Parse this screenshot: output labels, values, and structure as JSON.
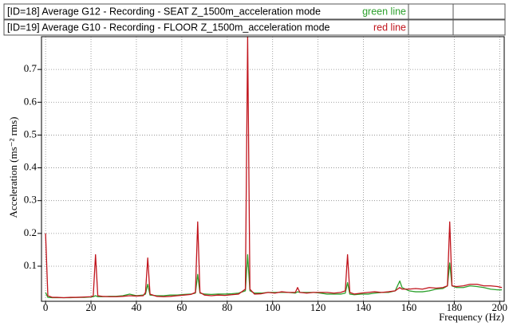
{
  "chart_data": {
    "type": "line",
    "y_label": "Acceleration (ms⁻² rms)",
    "x_label": "Frequency (Hz)",
    "xlim": [
      -1.8,
      202
    ],
    "ylim": [
      -0.007,
      0.8
    ],
    "xticks": [
      0,
      20,
      40,
      60,
      80,
      100,
      120,
      140,
      160,
      180,
      200
    ],
    "yticks": [
      0.1,
      0.2,
      0.3,
      0.4,
      0.5,
      0.6,
      0.7
    ],
    "grid": true,
    "x": [
      0,
      1,
      3,
      5,
      8,
      11,
      14,
      17,
      20,
      21,
      22,
      23,
      25,
      28,
      31,
      34,
      37,
      40,
      43,
      44,
      45,
      46,
      49,
      52,
      55,
      58,
      61,
      64,
      66,
      67,
      68,
      70,
      73,
      76,
      79,
      82,
      85,
      88,
      89,
      90,
      92,
      95,
      98,
      101,
      104,
      107,
      110,
      111,
      112,
      115,
      118,
      121,
      124,
      127,
      130,
      132,
      133,
      134,
      136,
      139,
      142,
      145,
      148,
      151,
      154,
      155,
      156,
      157,
      160,
      163,
      166,
      169,
      172,
      175,
      177,
      178,
      179,
      181,
      184,
      187,
      190,
      193,
      196,
      199,
      201
    ],
    "series": [
      {
        "name": "[ID=18] Average G12  - Recording - SEAT Z_1500m_acceleration mode",
        "line_label": "green line",
        "color": "#2ca02c",
        "values": [
          0.02,
          0.005,
          0.004,
          0.004,
          0.004,
          0.004,
          0.005,
          0.005,
          0.006,
          0.007,
          0.01,
          0.007,
          0.007,
          0.008,
          0.008,
          0.01,
          0.015,
          0.01,
          0.012,
          0.015,
          0.045,
          0.012,
          0.01,
          0.01,
          0.012,
          0.012,
          0.014,
          0.015,
          0.018,
          0.075,
          0.018,
          0.015,
          0.014,
          0.015,
          0.015,
          0.016,
          0.018,
          0.025,
          0.135,
          0.025,
          0.018,
          0.018,
          0.02,
          0.02,
          0.02,
          0.02,
          0.018,
          0.022,
          0.02,
          0.02,
          0.02,
          0.018,
          0.015,
          0.015,
          0.015,
          0.018,
          0.05,
          0.015,
          0.013,
          0.015,
          0.015,
          0.018,
          0.02,
          0.02,
          0.025,
          0.04,
          0.055,
          0.035,
          0.025,
          0.022,
          0.022,
          0.025,
          0.03,
          0.032,
          0.04,
          0.11,
          0.04,
          0.035,
          0.035,
          0.04,
          0.038,
          0.035,
          0.03,
          0.028,
          0.028
        ]
      },
      {
        "name": "[ID=19] Average G10  - Recording - FLOOR Z_1500m_acceleration mode",
        "line_label": "red line",
        "color": "#c0141c",
        "values": [
          0.2,
          0.01,
          0.005,
          0.005,
          0.004,
          0.005,
          0.005,
          0.006,
          0.007,
          0.01,
          0.135,
          0.01,
          0.008,
          0.007,
          0.007,
          0.008,
          0.01,
          0.009,
          0.01,
          0.02,
          0.125,
          0.015,
          0.008,
          0.007,
          0.008,
          0.01,
          0.012,
          0.014,
          0.02,
          0.235,
          0.02,
          0.012,
          0.01,
          0.012,
          0.011,
          0.013,
          0.015,
          0.03,
          0.8,
          0.03,
          0.015,
          0.016,
          0.02,
          0.018,
          0.022,
          0.02,
          0.02,
          0.035,
          0.02,
          0.018,
          0.02,
          0.02,
          0.02,
          0.018,
          0.02,
          0.025,
          0.135,
          0.02,
          0.015,
          0.018,
          0.02,
          0.022,
          0.02,
          0.022,
          0.025,
          0.03,
          0.035,
          0.03,
          0.03,
          0.032,
          0.03,
          0.035,
          0.033,
          0.035,
          0.04,
          0.235,
          0.04,
          0.038,
          0.04,
          0.045,
          0.045,
          0.04,
          0.04,
          0.038,
          0.035
        ]
      }
    ]
  }
}
